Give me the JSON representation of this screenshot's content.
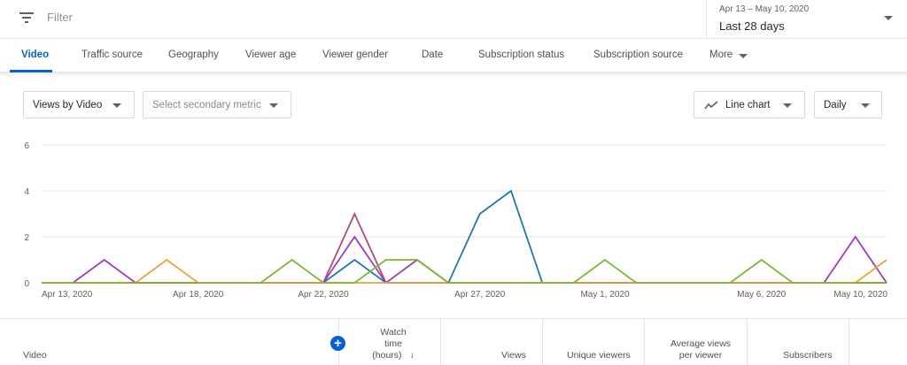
{
  "filter": {
    "placeholder": "Filter"
  },
  "date_picker": {
    "range": "Apr 13 – May 10, 2020",
    "label": "Last 28 days"
  },
  "tabs": [
    {
      "label": "Video",
      "active": true
    },
    {
      "label": "Traffic source"
    },
    {
      "label": "Geography"
    },
    {
      "label": "Viewer age"
    },
    {
      "label": "Viewer gender"
    },
    {
      "label": "Date"
    },
    {
      "label": "Subscription status"
    },
    {
      "label": "Subscription source"
    },
    {
      "label": "More"
    }
  ],
  "controls": {
    "primary_metric": "Views by Video",
    "secondary_metric": "Select secondary metric",
    "chart_type": "Line chart",
    "granularity": "Daily"
  },
  "chart_data": {
    "type": "line",
    "x": [
      "Apr 13, 2020",
      "Apr 14",
      "Apr 15",
      "Apr 16",
      "Apr 17",
      "Apr 18, 2020",
      "Apr 19",
      "Apr 20",
      "Apr 21",
      "Apr 22, 2020",
      "Apr 23",
      "Apr 24",
      "Apr 25",
      "Apr 26",
      "Apr 27, 2020",
      "Apr 28",
      "Apr 29",
      "Apr 30",
      "May 1, 2020",
      "May 2",
      "May 3",
      "May 4",
      "May 5",
      "May 6, 2020",
      "May 7",
      "May 8",
      "May 9",
      "May 10, 2020"
    ],
    "x_tick_labels": [
      "Apr 13, 2020",
      "Apr 18, 2020",
      "Apr 22, 2020",
      "Apr 27, 2020",
      "May 1, 2020",
      "May 6, 2020",
      "May 10, 2020"
    ],
    "y_ticks": [
      "0",
      "2",
      "4",
      "6"
    ],
    "ylim": [
      0,
      6
    ],
    "grid": true,
    "series": [
      {
        "color": "#1f77b4",
        "values": [
          0,
          0,
          0,
          0,
          0,
          0,
          0,
          0,
          0,
          0,
          1,
          0,
          0,
          0,
          3,
          4,
          0,
          0,
          0,
          0,
          0,
          0,
          0,
          0,
          0,
          0,
          0,
          0
        ]
      },
      {
        "color": "#b5477f",
        "values": [
          0,
          0,
          0,
          0,
          0,
          0,
          0,
          0,
          0,
          0,
          3,
          0,
          0,
          0,
          0,
          0,
          0,
          0,
          0,
          0,
          0,
          0,
          0,
          0,
          0,
          0,
          0,
          0
        ]
      },
      {
        "color": "#9c3dbb",
        "values": [
          0,
          0,
          1,
          0,
          0,
          0,
          0,
          0,
          0,
          0,
          2,
          0,
          1,
          0,
          0,
          0,
          0,
          0,
          0,
          0,
          0,
          0,
          0,
          0,
          0,
          0,
          2,
          0
        ]
      },
      {
        "color": "#e8a33b",
        "values": [
          0,
          0,
          0,
          0,
          1,
          0,
          0,
          0,
          0,
          0,
          0,
          0,
          0,
          0,
          0,
          0,
          0,
          0,
          0,
          0,
          0,
          0,
          0,
          0,
          0,
          0,
          0,
          1
        ]
      },
      {
        "color": "#7cb82f",
        "values": [
          0,
          0,
          0,
          0,
          0,
          0,
          0,
          0,
          1,
          0,
          0,
          1,
          1,
          0,
          0,
          0,
          0,
          0,
          1,
          0,
          0,
          0,
          0,
          1,
          0,
          0,
          0,
          0
        ]
      }
    ]
  },
  "table_header": {
    "video": "Video",
    "watch_time": [
      "Watch",
      "time",
      "(hours)"
    ],
    "sort_arrow": "↓",
    "views": "Views",
    "unique_viewers": "Unique viewers",
    "avg_views": [
      "Average views",
      "per viewer"
    ],
    "subscribers": "Subscribers",
    "add_symbol": "+"
  }
}
